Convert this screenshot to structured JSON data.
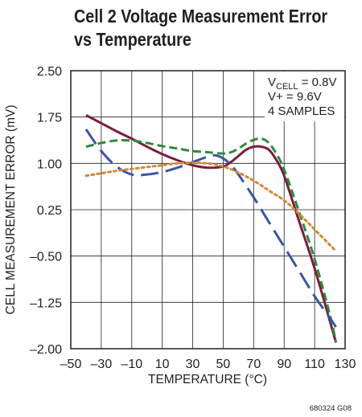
{
  "chart_data": {
    "type": "line",
    "title_line1": "Cell 2 Voltage Measurement Error",
    "title_line2": "vs Temperature",
    "xlabel": "TEMPERATURE (°C)",
    "ylabel": "CELL MEASUREMENT ERROR (mV)",
    "xlim": [
      -50,
      130
    ],
    "ylim": [
      -2.0,
      2.5
    ],
    "x_ticks": [
      -50,
      -30,
      -10,
      10,
      30,
      50,
      70,
      90,
      110,
      130
    ],
    "x_tick_labels": [
      "–50",
      "–30",
      "–10",
      "10",
      "30",
      "50",
      "70",
      "90",
      "110",
      "130"
    ],
    "y_ticks": [
      2.5,
      1.75,
      1.0,
      0.25,
      -0.5,
      -1.25,
      -2.0
    ],
    "y_tick_labels": [
      "2.50",
      "1.75",
      "1.00",
      "0.25",
      "–0.50",
      "–1.25",
      "–2.00"
    ],
    "grid": true,
    "annotation": {
      "vcell_prefix": "V",
      "vcell_sub": "CELL",
      "vcell_value": " = 0.8V",
      "vplus": "V+ = 9.6V",
      "samples": "4 SAMPLES"
    },
    "figure_code": "680324 G08",
    "series": [
      {
        "color": "#7b1e3a",
        "dash": "solid",
        "x": [
          -40,
          -30,
          -20,
          -10,
          0,
          10,
          20,
          30,
          40,
          50,
          55,
          60,
          65,
          70,
          75,
          80,
          85,
          90,
          100,
          110,
          120,
          124
        ],
        "values": [
          1.78,
          1.65,
          1.52,
          1.4,
          1.27,
          1.15,
          1.05,
          0.97,
          0.93,
          0.95,
          1.02,
          1.12,
          1.22,
          1.27,
          1.27,
          1.22,
          1.05,
          0.8,
          0.05,
          -0.7,
          -1.55,
          -1.9
        ]
      },
      {
        "color": "#2f8a3e",
        "dash": "dash",
        "x": [
          -40,
          -30,
          -20,
          -10,
          0,
          10,
          20,
          30,
          40,
          50,
          55,
          60,
          65,
          70,
          75,
          80,
          85,
          90,
          100,
          110,
          120,
          124
        ],
        "values": [
          1.27,
          1.33,
          1.37,
          1.37,
          1.33,
          1.28,
          1.24,
          1.2,
          1.18,
          1.16,
          1.18,
          1.24,
          1.32,
          1.38,
          1.4,
          1.33,
          1.15,
          0.9,
          0.2,
          -0.55,
          -1.45,
          -1.9
        ]
      },
      {
        "color": "#3a55a4",
        "dash": "longdash",
        "x": [
          -40,
          -30,
          -20,
          -10,
          0,
          10,
          20,
          30,
          40,
          45,
          50,
          55,
          60,
          70,
          80,
          90,
          100,
          110,
          120,
          124
        ],
        "values": [
          1.55,
          1.2,
          0.95,
          0.82,
          0.82,
          0.86,
          0.93,
          1.02,
          1.11,
          1.13,
          1.08,
          0.98,
          0.82,
          0.45,
          0.05,
          -0.35,
          -0.75,
          -1.15,
          -1.5,
          -1.65
        ]
      },
      {
        "color": "#d08a3a",
        "dash": "dot",
        "x": [
          -40,
          -30,
          -20,
          -10,
          0,
          10,
          20,
          30,
          40,
          50,
          60,
          70,
          80,
          90,
          100,
          110,
          120,
          124
        ],
        "values": [
          0.8,
          0.84,
          0.88,
          0.91,
          0.94,
          0.97,
          1.0,
          1.01,
          1.0,
          0.95,
          0.85,
          0.72,
          0.56,
          0.4,
          0.18,
          -0.07,
          -0.32,
          -0.42
        ]
      }
    ]
  }
}
